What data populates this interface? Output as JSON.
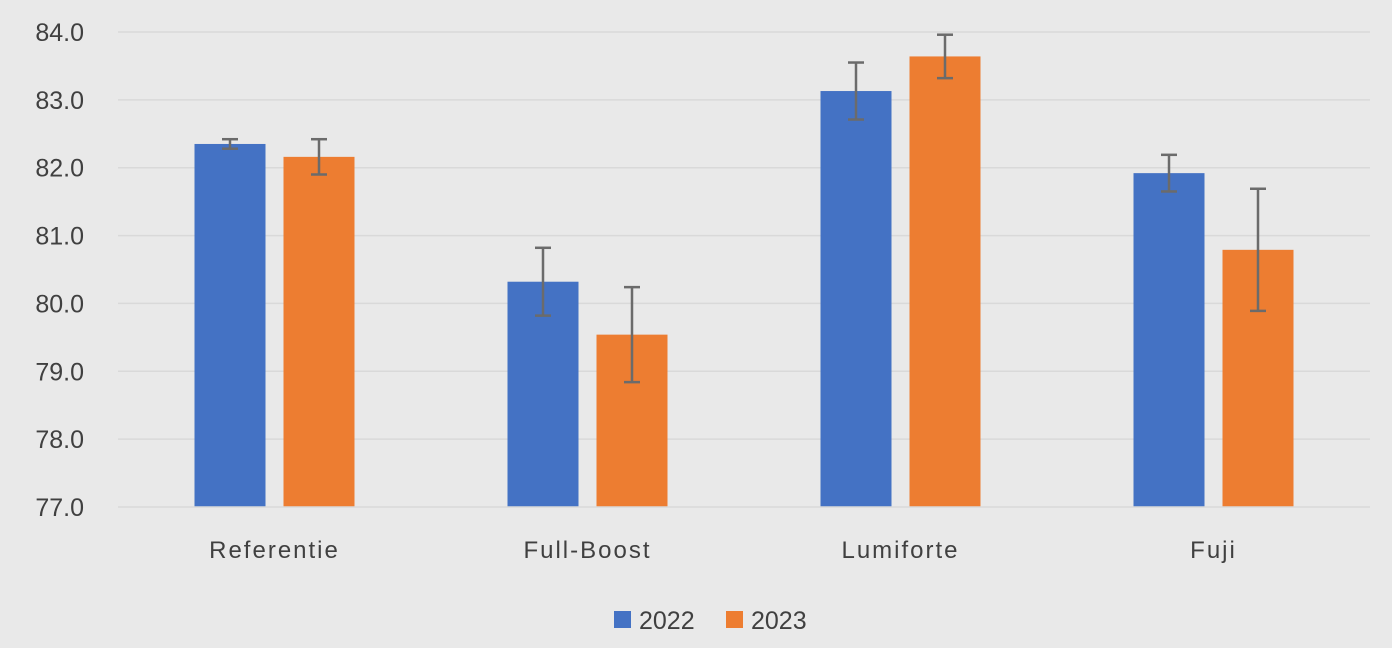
{
  "chart_data": {
    "type": "bar",
    "categories": [
      "Referentie",
      "Full-Boost",
      "Lumiforte",
      "Fuji"
    ],
    "series": [
      {
        "name": "2022",
        "color": "#4472c4",
        "values": [
          82.35,
          80.32,
          83.13,
          81.92
        ],
        "error": [
          0.07,
          0.5,
          0.42,
          0.27
        ]
      },
      {
        "name": "2023",
        "color": "#ed7d31",
        "values": [
          82.16,
          79.54,
          83.64,
          80.79
        ],
        "error": [
          0.26,
          0.7,
          0.32,
          0.9
        ]
      }
    ],
    "yticks": [
      "77.0",
      "78.0",
      "79.0",
      "80.0",
      "81.0",
      "82.0",
      "83.0",
      "84.0"
    ],
    "ylim": [
      77,
      84
    ],
    "grid": true,
    "legend_position": "bottom",
    "error_bar_color": "#6b6b6b",
    "grid_color": "#d9d9d9",
    "background": "#e9e9e9"
  }
}
